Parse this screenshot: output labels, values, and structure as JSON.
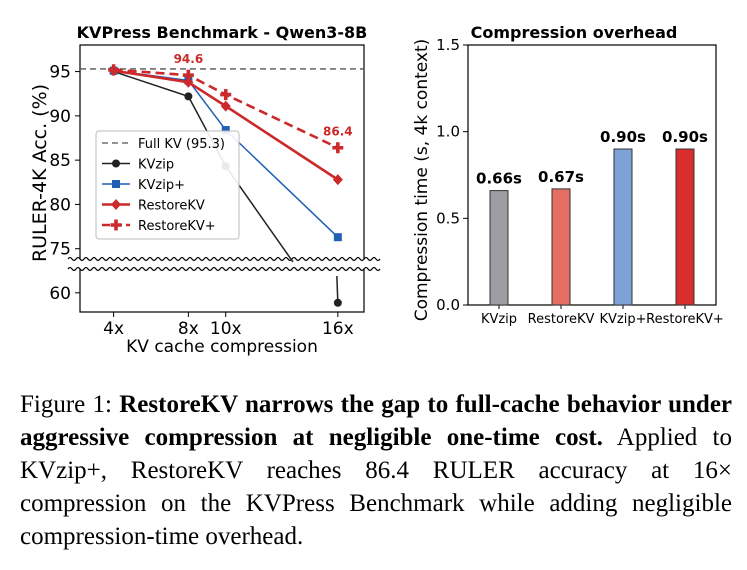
{
  "chart_data": [
    {
      "type": "line",
      "title": "KVPress Benchmark - Qwen3-8B",
      "xlabel": "KV cache compression",
      "ylabel": "RULER-4K Acc. (%)",
      "x_categories": [
        "4x",
        "8x",
        "10x",
        "16x"
      ],
      "y_upper_ticks": [
        "80",
        "85",
        "90",
        "95"
      ],
      "y_lower_ticks": [
        "60",
        "75"
      ],
      "axis_break": true,
      "ylim_upper": [
        73.5,
        98
      ],
      "ylim_lower": [
        57.5,
        63.5
      ],
      "grid": false,
      "legend_position": "center-left",
      "reference_line": {
        "name": "Full KV (95.3)",
        "value": 95.3,
        "color": "#555555"
      },
      "series": [
        {
          "name": "KVzip",
          "color": "#222222",
          "marker": "circle",
          "dash": false,
          "values": [
            95.0,
            92.2,
            84.3,
            58.7
          ]
        },
        {
          "name": "KVzip+",
          "color": "#1f5fb4",
          "marker": "square",
          "dash": false,
          "values": [
            95.1,
            94.0,
            88.4,
            76.3
          ]
        },
        {
          "name": "RestoreKV",
          "color": "#cc2a2a",
          "marker": "diamond",
          "dash": false,
          "values": [
            95.1,
            93.8,
            91.1,
            82.8
          ]
        },
        {
          "name": "RestoreKV+",
          "color": "#cc2a2a",
          "marker": "plus",
          "dash": true,
          "values": [
            95.2,
            94.6,
            92.4,
            86.4
          ]
        }
      ],
      "annotations": [
        {
          "text": "94.6",
          "series": "RestoreKV+",
          "category": "8x"
        },
        {
          "text": "86.4",
          "series": "RestoreKV+",
          "category": "16x"
        }
      ]
    },
    {
      "type": "bar",
      "title": "Compression overhead",
      "ylabel": "Compression time (s, 4k context)",
      "categories": [
        "KVzip",
        "RestoreKV",
        "KVzip+",
        "RestoreKV+"
      ],
      "values": [
        0.66,
        0.67,
        0.9,
        0.9
      ],
      "value_labels": [
        "0.66s",
        "0.67s",
        "0.90s",
        "0.90s"
      ],
      "colors": [
        "#9c9ea3",
        "#e46e64",
        "#7ea2d6",
        "#d92e2e"
      ],
      "ylim": [
        0.0,
        1.5
      ],
      "y_ticks": [
        "0.0",
        "0.5",
        "1.0",
        "1.5"
      ],
      "grid": false
    }
  ],
  "caption": {
    "label": "Figure 1: ",
    "bold": "RestoreKV narrows the gap to full-cache behav­ior under aggressive compression at negligible one-time cost.",
    "text": " Applied to KVzip+, RestoreKV reaches 86.4 RULER accuracy at 16× compression on the KVPress Benchmark while adding negligible compression-time overhead."
  }
}
